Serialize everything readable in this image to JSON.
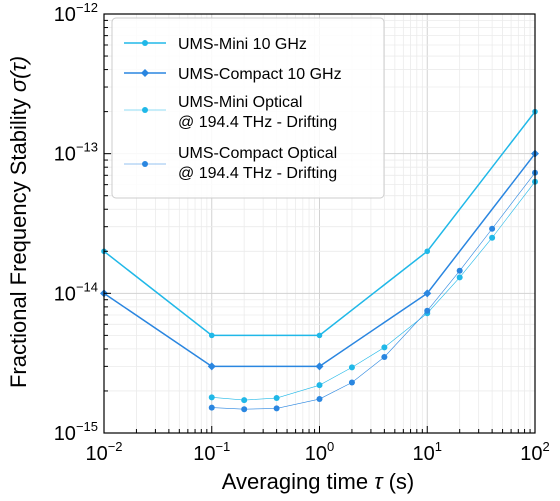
{
  "chart_data": {
    "type": "line",
    "xscale": "log",
    "yscale": "log",
    "xlim": [
      0.01,
      100
    ],
    "ylim": [
      1e-15,
      1e-12
    ],
    "xlabel_prefix": "Averaging time ",
    "xlabel_symbol": "τ",
    "xlabel_suffix": " (s)",
    "ylabel_prefix": "Fractional Frequency Stability ",
    "ylabel_symbol": "σ(τ)",
    "grid": "major and minor",
    "legend_placement": "top-left",
    "x_ticks": [
      {
        "value": 0.01,
        "base": "10",
        "exp": "−2"
      },
      {
        "value": 0.1,
        "base": "10",
        "exp": "−1"
      },
      {
        "value": 1,
        "base": "10",
        "exp": "0"
      },
      {
        "value": 10,
        "base": "10",
        "exp": "1"
      },
      {
        "value": 100,
        "base": "10",
        "exp": "2"
      }
    ],
    "y_ticks": [
      {
        "value": 1e-15,
        "base": "10",
        "exp": "−15"
      },
      {
        "value": 1e-14,
        "base": "10",
        "exp": "−14"
      },
      {
        "value": 1e-13,
        "base": "10",
        "exp": "−13"
      },
      {
        "value": 1e-12,
        "base": "10",
        "exp": "−12"
      }
    ],
    "series": [
      {
        "name": "UMS-Mini 10 GHz",
        "color": "#20b8e8",
        "marker": "circle",
        "style": "solid",
        "x": [
          0.01,
          0.1,
          1,
          10,
          100
        ],
        "y": [
          2e-14,
          5e-15,
          5e-15,
          2e-14,
          2e-13
        ]
      },
      {
        "name": "UMS-Compact 10 GHz",
        "color": "#2a86e0",
        "marker": "diamond",
        "style": "solid",
        "x": [
          0.01,
          0.1,
          1,
          10,
          100
        ],
        "y": [
          1e-14,
          3e-15,
          3e-15,
          1e-14,
          1e-13
        ]
      },
      {
        "name_line1": "UMS-Mini Optical",
        "name_line2": "@ 194.4 THz - Drifting",
        "color": "#20b8e8",
        "marker": "circle",
        "style": "thin",
        "x": [
          0.1,
          0.2,
          0.4,
          1,
          2,
          4,
          10,
          20,
          40,
          100
        ],
        "y": [
          1.8e-15,
          1.72e-15,
          1.78e-15,
          2.2e-15,
          2.95e-15,
          4.1e-15,
          7.2e-15,
          1.3e-14,
          2.5e-14,
          6.3e-14
        ]
      },
      {
        "name_line1": "UMS-Compact Optical",
        "name_line2": "@ 194.4 THz - Drifting",
        "color": "#2a86e0",
        "marker": "circle",
        "style": "thin",
        "x": [
          0.1,
          0.2,
          0.4,
          1,
          2,
          4,
          10,
          20,
          40,
          100
        ],
        "y": [
          1.52e-15,
          1.48e-15,
          1.5e-15,
          1.75e-15,
          2.3e-15,
          3.5e-15,
          7.5e-15,
          1.45e-14,
          2.9e-14,
          7.3e-14
        ]
      }
    ]
  }
}
